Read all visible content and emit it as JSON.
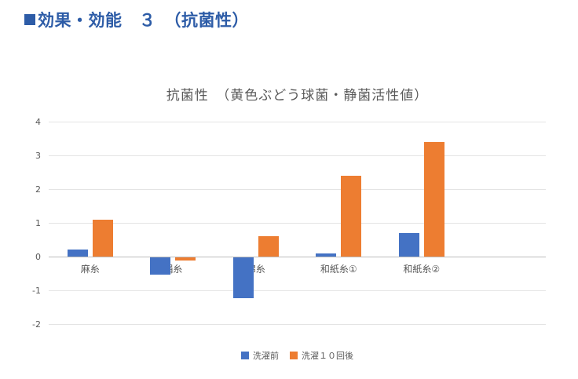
{
  "page": {
    "header": "効果・効能　３　（抗菌性）",
    "accent_color": "#2d5ca7"
  },
  "chart_data": {
    "type": "bar",
    "title": "抗菌性　（黄色ぶどう球菌・静菌活性値）",
    "categories": [
      "麻糸",
      "絹糸",
      "綿糸",
      "和紙糸①",
      "和紙糸②"
    ],
    "series": [
      {
        "name": "洗濯前",
        "color": "#4472C4",
        "values": [
          0.2,
          -0.5,
          -1.2,
          0.1,
          0.7
        ]
      },
      {
        "name": "洗濯１０回後",
        "color": "#ED7D31",
        "values": [
          1.1,
          -0.1,
          0.6,
          2.4,
          3.4
        ]
      }
    ],
    "xlabel": "",
    "ylabel": "",
    "ylim": [
      -2,
      4
    ],
    "yticks": [
      4,
      3,
      2,
      1,
      0,
      -1,
      -2
    ],
    "grid": true,
    "legend_position": "bottom",
    "text_color": "#595959",
    "gridline_color": "#e4e4e4"
  }
}
